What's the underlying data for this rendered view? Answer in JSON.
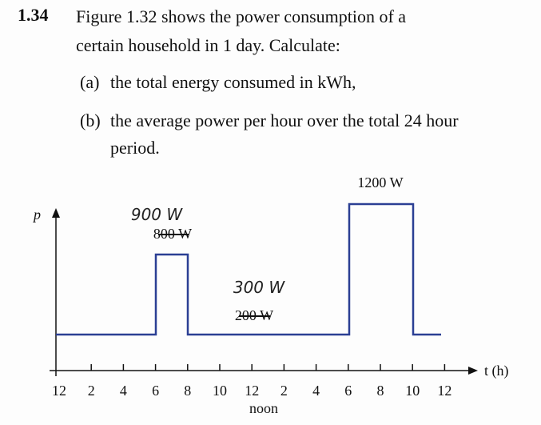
{
  "problem": {
    "number": "1.34",
    "lines": [
      "Figure 1.32 shows the power consumption of a",
      "certain household in 1 day. Calculate:"
    ],
    "parts": [
      {
        "label": "(a)",
        "lines": [
          "the total energy consumed in kWh,"
        ]
      },
      {
        "label": "(b)",
        "lines": [
          "the average power per hour over the total 24 hour",
          "period."
        ]
      }
    ]
  },
  "figure": {
    "y_label": "p",
    "x_label": "t (h)",
    "x_tick_labels": [
      "12",
      "2",
      "4",
      "6",
      "8",
      "10",
      "12",
      "2",
      "4",
      "6",
      "8",
      "10",
      "12"
    ],
    "noon_label": "noon",
    "level_labels": [
      "1200 W",
      "800 W",
      "200 W"
    ],
    "handwritten": [
      "900 W",
      "300 W"
    ]
  }
}
